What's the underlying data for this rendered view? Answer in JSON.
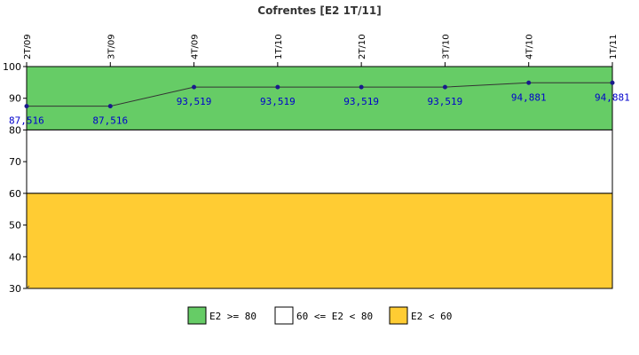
{
  "chart_data": {
    "type": "line",
    "title": "Cofrentes [E2 1T/11]",
    "categories": [
      "2T/09",
      "3T/09",
      "4T/09",
      "1T/10",
      "2T/10",
      "3T/10",
      "4T/10",
      "1T/11"
    ],
    "series": [
      {
        "values": [
          87.516,
          87.516,
          93.519,
          93.519,
          93.519,
          93.519,
          94.881,
          94.881
        ],
        "value_labels": [
          "87,516",
          "87,516",
          "93,519",
          "93,519",
          "93,519",
          "93,519",
          "94,881",
          "94,881"
        ],
        "color": "#1a1a8c",
        "label_color": "#0000cc"
      }
    ],
    "ylim": [
      30,
      100
    ],
    "yticks": [
      30,
      40,
      50,
      60,
      70,
      80,
      90,
      100
    ],
    "bands": [
      {
        "label": "E2 >= 80",
        "from": 80,
        "to": 100,
        "color": "#66cc66"
      },
      {
        "label": "60 <= E2 < 80",
        "from": 60,
        "to": 80,
        "color": "#ffffff"
      },
      {
        "label": "E2 < 60",
        "from": 30,
        "to": 60,
        "color": "#ffcc33"
      }
    ],
    "legend_position": "bottom-center",
    "grid": false
  }
}
